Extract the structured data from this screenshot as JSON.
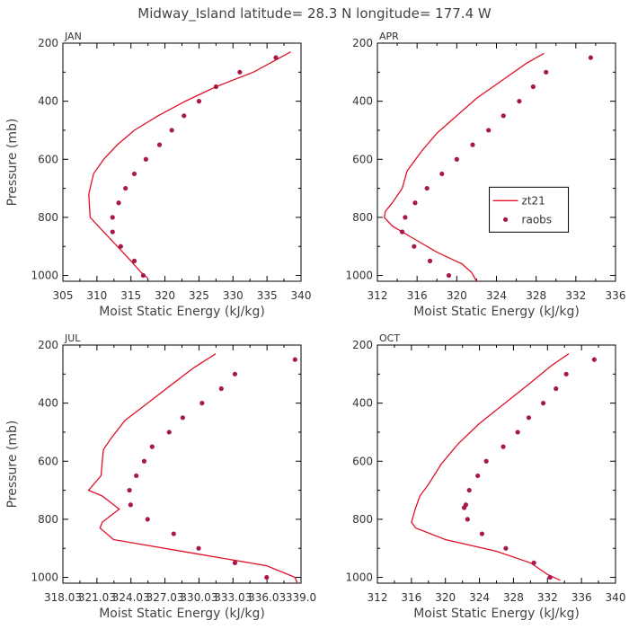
{
  "page_title": "Midway_Island   latitude= 28.3 N longitude= 177.4 W",
  "colors": {
    "model": "#e0102a",
    "obs": "#a8184a",
    "axis": "#000000",
    "text": "#444444"
  },
  "legend": {
    "model_label": "zt21",
    "obs_label": "raobs",
    "panel_index": 1,
    "placement": "right"
  },
  "chart_data": [
    {
      "type": "line",
      "title": "JAN",
      "xlabel": "Moist Static Energy (kJ/kg)",
      "ylabel": "Pressure (mb)",
      "xlim": [
        305,
        340
      ],
      "ylim": [
        200,
        1020
      ],
      "y_inverted": true,
      "xticks": [
        305,
        310,
        315,
        320,
        325,
        330,
        335,
        340
      ],
      "xtick_labels": [
        "305",
        "310",
        "315",
        "320",
        "325",
        "330",
        "335",
        "340"
      ],
      "yticks": [
        200,
        400,
        600,
        800,
        1000
      ],
      "ytick_labels": [
        "200",
        "400",
        "600",
        "800",
        "1000"
      ],
      "series": [
        {
          "name": "zt21",
          "kind": "line",
          "x": [
            338.5,
            333,
            327.5,
            323,
            319,
            315.5,
            313,
            311,
            309.5,
            308.8,
            309,
            311,
            313,
            315,
            316.5,
            317.5
          ],
          "y": [
            230,
            300,
            350,
            400,
            450,
            500,
            550,
            600,
            650,
            720,
            800,
            850,
            900,
            950,
            990,
            1010
          ]
        },
        {
          "name": "raobs",
          "kind": "points",
          "x": [
            336.3,
            331.0,
            327.5,
            325.0,
            322.8,
            321.0,
            319.2,
            317.2,
            315.5,
            314.2,
            313.2,
            312.3,
            312.3,
            313.5,
            315.5,
            316.8
          ],
          "y": [
            250,
            300,
            350,
            400,
            450,
            500,
            550,
            600,
            650,
            700,
            750,
            800,
            850,
            900,
            950,
            1000
          ]
        }
      ]
    },
    {
      "type": "line",
      "title": "APR",
      "xlabel": "Moist Static Energy (kJ/kg)",
      "ylabel": "",
      "xlim": [
        312,
        336
      ],
      "ylim": [
        200,
        1020
      ],
      "y_inverted": true,
      "xticks": [
        312,
        316,
        320,
        324,
        328,
        332,
        336
      ],
      "xtick_labels": [
        "312",
        "316",
        "320",
        "324",
        "328",
        "332",
        "336"
      ],
      "yticks": [
        200,
        400,
        600,
        800,
        1000
      ],
      "ytick_labels": [
        "200",
        "400",
        "600",
        "800",
        "1000"
      ],
      "series": [
        {
          "name": "zt21",
          "kind": "line",
          "x": [
            328.8,
            327,
            324.5,
            322,
            320,
            318,
            316.5,
            315,
            314.5,
            313.5,
            312.8,
            312.7,
            313.5,
            315.5,
            318,
            320.5,
            321.5,
            322
          ],
          "y": [
            235,
            270,
            330,
            390,
            450,
            510,
            570,
            640,
            700,
            750,
            780,
            800,
            830,
            870,
            920,
            960,
            990,
            1020
          ]
        },
        {
          "name": "raobs",
          "kind": "points",
          "x": [
            333.5,
            329.0,
            327.7,
            326.3,
            324.7,
            323.2,
            321.6,
            320.0,
            318.5,
            317.0,
            315.8,
            314.8,
            314.5,
            314.5,
            315.7,
            317.3,
            319.2
          ],
          "y": [
            250,
            300,
            350,
            400,
            450,
            500,
            550,
            600,
            650,
            700,
            750,
            800,
            850,
            850,
            900,
            950,
            1000
          ]
        }
      ]
    },
    {
      "type": "line",
      "title": "JUL",
      "xlabel": "Moist Static Energy (kJ/kg)",
      "ylabel": "Pressure (mb)",
      "xlim": [
        318.03,
        339.03
      ],
      "ylim": [
        200,
        1020
      ],
      "y_inverted": true,
      "xticks": [
        318.03,
        321.03,
        324.03,
        327.03,
        330.03,
        333.03,
        336.03,
        339.03
      ],
      "xtick_labels": [
        "318.03",
        "321.03",
        "324.03",
        "327.03",
        "330.03",
        "333.03",
        "336.03",
        "339.0"
      ],
      "yticks": [
        200,
        400,
        600,
        800,
        1000
      ],
      "ytick_labels": [
        "200",
        "400",
        "600",
        "800",
        "1000"
      ],
      "series": [
        {
          "name": "zt21",
          "kind": "line",
          "x": [
            331.5,
            329.5,
            327.5,
            325.5,
            323.5,
            322.3,
            321.6,
            321.5,
            321.4,
            320.3,
            321.5,
            323.0,
            321.5,
            321.3,
            322.5,
            330.0,
            336.0,
            338.5,
            338.7
          ],
          "y": [
            230,
            280,
            340,
            400,
            460,
            520,
            560,
            600,
            650,
            700,
            720,
            765,
            810,
            830,
            870,
            920,
            960,
            1000,
            1020
          ]
        },
        {
          "name": "raobs",
          "kind": "points",
          "x": [
            338.5,
            333.2,
            332.0,
            330.3,
            328.6,
            327.4,
            325.9,
            325.2,
            324.5,
            323.9,
            324.0,
            325.5,
            327.8,
            330.0,
            333.2,
            336.0
          ],
          "y": [
            250,
            300,
            350,
            400,
            450,
            500,
            550,
            600,
            650,
            700,
            750,
            800,
            850,
            900,
            950,
            1000
          ]
        }
      ]
    },
    {
      "type": "line",
      "title": "OCT",
      "xlabel": "Moist Static Energy (kJ/kg)",
      "ylabel": "",
      "xlim": [
        312,
        340
      ],
      "ylim": [
        200,
        1020
      ],
      "y_inverted": true,
      "xticks": [
        312,
        316,
        320,
        324,
        328,
        332,
        336,
        340
      ],
      "xtick_labels": [
        "312",
        "316",
        "320",
        "324",
        "328",
        "332",
        "336",
        "340"
      ],
      "yticks": [
        200,
        400,
        600,
        800,
        1000
      ],
      "ytick_labels": [
        "200",
        "400",
        "600",
        "800",
        "1000"
      ],
      "series": [
        {
          "name": "zt21",
          "kind": "line",
          "x": [
            334.5,
            332.5,
            330,
            327,
            324,
            321.5,
            319.5,
            318,
            317,
            316.5,
            316,
            316.5,
            320,
            326,
            330,
            332,
            333.5
          ],
          "y": [
            230,
            270,
            330,
            400,
            470,
            540,
            610,
            680,
            720,
            760,
            810,
            830,
            870,
            910,
            950,
            990,
            1010
          ]
        },
        {
          "name": "raobs",
          "kind": "points",
          "x": [
            337.5,
            334.2,
            333.0,
            331.5,
            329.8,
            328.5,
            326.8,
            324.8,
            323.8,
            322.8,
            322.4,
            322.2,
            322.6,
            324.3,
            327.1,
            330.4,
            332.3
          ],
          "y": [
            250,
            300,
            350,
            400,
            450,
            500,
            550,
            600,
            650,
            700,
            750,
            760,
            800,
            850,
            900,
            950,
            1000
          ]
        }
      ]
    }
  ]
}
